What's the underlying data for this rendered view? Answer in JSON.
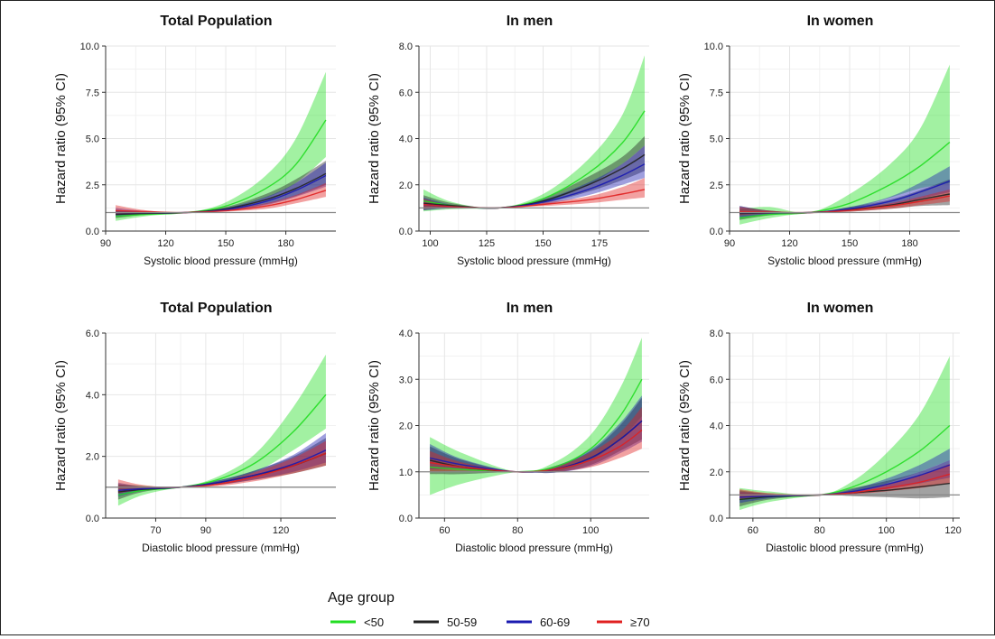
{
  "legend": {
    "title": "Age group",
    "items": [
      {
        "label": "<50",
        "color": "#22dd22"
      },
      {
        "label": "50-59",
        "color": "#222222"
      },
      {
        "label": "60-69",
        "color": "#1a1ab0"
      },
      {
        "label": "≥70",
        "color": "#e02020"
      }
    ]
  },
  "chart_data": [
    {
      "type": "line",
      "title": "Total Population",
      "xlabel": "Systolic blood pressure (mmHg)",
      "ylabel": "Hazard ratio (95% CI)",
      "xlim": [
        90,
        205
      ],
      "ylim": [
        0,
        10
      ],
      "xticks": [
        90,
        120,
        150,
        180
      ],
      "yticks": [
        "0.0",
        "2.5",
        "5.0",
        "7.5",
        "10.0"
      ],
      "reference_line": 1,
      "grid": true,
      "series": [
        {
          "name": "<50",
          "x": [
            95,
            110,
            130,
            150,
            170,
            185,
            200
          ],
          "y": [
            0.8,
            0.9,
            1.0,
            1.35,
            2.3,
            3.6,
            6.0
          ],
          "lower": [
            0.55,
            0.8,
            1.0,
            1.2,
            1.8,
            2.6,
            4.0
          ],
          "upper": [
            1.1,
            1.0,
            1.0,
            1.55,
            3.0,
            5.0,
            8.6
          ]
        },
        {
          "name": "50-59",
          "x": [
            95,
            110,
            130,
            150,
            170,
            185,
            200
          ],
          "y": [
            0.9,
            0.95,
            1.0,
            1.2,
            1.7,
            2.3,
            3.1
          ],
          "lower": [
            0.7,
            0.88,
            1.0,
            1.1,
            1.45,
            1.9,
            2.5
          ],
          "upper": [
            1.15,
            1.03,
            1.0,
            1.3,
            2.0,
            2.8,
            3.8
          ]
        },
        {
          "name": "60-69",
          "x": [
            95,
            110,
            130,
            150,
            170,
            185,
            200
          ],
          "y": [
            1.0,
            1.0,
            1.0,
            1.15,
            1.6,
            2.2,
            3.0
          ],
          "lower": [
            0.8,
            0.92,
            1.0,
            1.08,
            1.4,
            1.85,
            2.4
          ],
          "upper": [
            1.25,
            1.08,
            1.0,
            1.25,
            1.85,
            2.6,
            3.7
          ]
        },
        {
          "name": "≥70",
          "x": [
            95,
            110,
            130,
            150,
            170,
            185,
            200
          ],
          "y": [
            1.1,
            1.05,
            1.0,
            1.1,
            1.35,
            1.7,
            2.2
          ],
          "lower": [
            0.9,
            0.98,
            1.0,
            1.05,
            1.2,
            1.5,
            1.85
          ],
          "upper": [
            1.4,
            1.12,
            1.0,
            1.17,
            1.5,
            1.95,
            2.6
          ]
        }
      ]
    },
    {
      "type": "line",
      "title": "In men",
      "xlabel": "Systolic blood pressure (mmHg)",
      "ylabel": "Hazard ratio (95% CI)",
      "xlim": [
        95,
        197
      ],
      "ylim": [
        0,
        8
      ],
      "xticks": [
        100,
        125,
        150,
        175
      ],
      "yticks": [
        "0.0",
        "2.0",
        "4.0",
        "6.0",
        "8.0"
      ],
      "reference_line": 1,
      "grid": true,
      "series": [
        {
          "name": "<50",
          "x": [
            97,
            110,
            130,
            150,
            170,
            185,
            195
          ],
          "y": [
            1.3,
            1.1,
            1.0,
            1.4,
            2.5,
            3.8,
            5.2
          ],
          "lower": [
            0.85,
            0.95,
            1.0,
            1.25,
            2.0,
            2.9,
            3.7
          ],
          "upper": [
            1.8,
            1.25,
            1.0,
            1.6,
            3.1,
            5.0,
            7.6
          ]
        },
        {
          "name": "50-59",
          "x": [
            97,
            110,
            130,
            150,
            170,
            185,
            195
          ],
          "y": [
            1.2,
            1.1,
            1.0,
            1.3,
            2.0,
            2.7,
            3.3
          ],
          "lower": [
            0.9,
            1.0,
            1.0,
            1.2,
            1.7,
            2.2,
            2.6
          ],
          "upper": [
            1.55,
            1.2,
            1.0,
            1.42,
            2.35,
            3.2,
            4.1
          ]
        },
        {
          "name": "60-69",
          "x": [
            97,
            110,
            130,
            150,
            170,
            185,
            195
          ],
          "y": [
            1.15,
            1.05,
            1.0,
            1.25,
            1.8,
            2.4,
            2.9
          ],
          "lower": [
            0.9,
            0.98,
            1.0,
            1.15,
            1.55,
            2.0,
            2.3
          ],
          "upper": [
            1.45,
            1.13,
            1.0,
            1.35,
            2.1,
            2.9,
            3.7
          ]
        },
        {
          "name": "≥70",
          "x": [
            97,
            110,
            130,
            150,
            170,
            185,
            195
          ],
          "y": [
            1.15,
            1.05,
            1.0,
            1.15,
            1.35,
            1.6,
            1.8
          ],
          "lower": [
            0.95,
            1.0,
            1.0,
            1.08,
            1.2,
            1.35,
            1.45
          ],
          "upper": [
            1.4,
            1.1,
            1.0,
            1.22,
            1.5,
            1.9,
            2.3
          ]
        }
      ]
    },
    {
      "type": "line",
      "title": "In women",
      "xlabel": "Systolic blood pressure (mmHg)",
      "ylabel": "Hazard ratio (95% CI)",
      "xlim": [
        90,
        205
      ],
      "ylim": [
        0,
        10
      ],
      "xticks": [
        90,
        120,
        150,
        180
      ],
      "yticks": [
        "0.0",
        "2.5",
        "5.0",
        "7.5",
        "10.0"
      ],
      "reference_line": 1,
      "grid": true,
      "series": [
        {
          "name": "<50",
          "x": [
            95,
            110,
            130,
            150,
            170,
            185,
            200
          ],
          "y": [
            0.7,
            0.9,
            1.0,
            1.5,
            2.5,
            3.5,
            4.8
          ],
          "lower": [
            0.35,
            0.7,
            1.0,
            1.2,
            1.8,
            2.3,
            2.6
          ],
          "upper": [
            1.2,
            1.3,
            1.0,
            2.0,
            3.6,
            5.5,
            9.0
          ]
        },
        {
          "name": "50-59",
          "x": [
            95,
            110,
            130,
            150,
            170,
            185,
            200
          ],
          "y": [
            0.95,
            0.98,
            1.0,
            1.15,
            1.4,
            1.7,
            2.0
          ],
          "lower": [
            0.6,
            0.85,
            1.0,
            1.05,
            1.2,
            1.35,
            1.4
          ],
          "upper": [
            1.35,
            1.1,
            1.0,
            1.3,
            1.7,
            2.2,
            2.8
          ]
        },
        {
          "name": "60-69",
          "x": [
            95,
            110,
            130,
            150,
            170,
            185,
            200
          ],
          "y": [
            1.0,
            1.0,
            1.0,
            1.2,
            1.6,
            2.1,
            2.7
          ],
          "lower": [
            0.75,
            0.9,
            1.0,
            1.1,
            1.4,
            1.75,
            2.1
          ],
          "upper": [
            1.35,
            1.1,
            1.0,
            1.3,
            1.85,
            2.6,
            3.5
          ]
        },
        {
          "name": "≥70",
          "x": [
            95,
            110,
            130,
            150,
            170,
            185,
            200
          ],
          "y": [
            1.05,
            1.02,
            1.0,
            1.12,
            1.35,
            1.6,
            1.9
          ],
          "lower": [
            0.85,
            0.95,
            1.0,
            1.05,
            1.2,
            1.4,
            1.6
          ],
          "upper": [
            1.3,
            1.1,
            1.0,
            1.2,
            1.5,
            1.85,
            2.25
          ]
        }
      ]
    },
    {
      "type": "line",
      "title": "Total Population",
      "xlabel": "Diastolic blood pressure (mmHg)",
      "ylabel": "Hazard ratio (95% CI)",
      "xlim": [
        50,
        142
      ],
      "ylim": [
        0,
        6
      ],
      "xticks": [
        70,
        90,
        120
      ],
      "yticks": [
        "0.0",
        "2.0",
        "4.0",
        "6.0"
      ],
      "reference_line": 1,
      "grid": true,
      "series": [
        {
          "name": "<50",
          "x": [
            55,
            65,
            80,
            95,
            110,
            125,
            138
          ],
          "y": [
            0.75,
            0.9,
            1.0,
            1.25,
            1.8,
            2.8,
            4.0
          ],
          "lower": [
            0.4,
            0.75,
            1.0,
            1.15,
            1.5,
            2.2,
            2.9
          ],
          "upper": [
            1.1,
            1.05,
            1.0,
            1.35,
            2.1,
            3.6,
            5.3
          ]
        },
        {
          "name": "50-59",
          "x": [
            55,
            65,
            80,
            95,
            110,
            125,
            138
          ],
          "y": [
            0.85,
            0.93,
            1.0,
            1.15,
            1.4,
            1.7,
            2.1
          ],
          "lower": [
            0.6,
            0.85,
            1.0,
            1.08,
            1.25,
            1.45,
            1.7
          ],
          "upper": [
            1.1,
            1.02,
            1.0,
            1.22,
            1.55,
            2.0,
            2.6
          ]
        },
        {
          "name": "60-69",
          "x": [
            55,
            65,
            80,
            95,
            110,
            125,
            138
          ],
          "y": [
            0.9,
            0.95,
            1.0,
            1.15,
            1.4,
            1.75,
            2.2
          ],
          "lower": [
            0.7,
            0.88,
            1.0,
            1.08,
            1.25,
            1.5,
            1.8
          ],
          "upper": [
            1.15,
            1.03,
            1.0,
            1.22,
            1.55,
            2.05,
            2.75
          ]
        },
        {
          "name": "≥70",
          "x": [
            55,
            65,
            80,
            95,
            110,
            125,
            138
          ],
          "y": [
            1.0,
            1.0,
            1.0,
            1.1,
            1.35,
            1.7,
            2.1
          ],
          "lower": [
            0.8,
            0.93,
            1.0,
            1.04,
            1.2,
            1.45,
            1.7
          ],
          "upper": [
            1.25,
            1.07,
            1.0,
            1.16,
            1.5,
            1.95,
            2.5
          ]
        }
      ]
    },
    {
      "type": "line",
      "title": "In men",
      "xlabel": "Diastolic blood pressure (mmHg)",
      "ylabel": "Hazard ratio (95% CI)",
      "xlim": [
        53,
        116
      ],
      "ylim": [
        0,
        4
      ],
      "xticks": [
        60,
        80,
        100
      ],
      "yticks": [
        "0.0",
        "1.0",
        "2.0",
        "3.0",
        "4.0"
      ],
      "reference_line": 1,
      "grid": true,
      "series": [
        {
          "name": "<50",
          "x": [
            56,
            65,
            80,
            90,
            100,
            108,
            114
          ],
          "y": [
            1.1,
            1.05,
            1.0,
            1.1,
            1.5,
            2.2,
            3.0
          ],
          "lower": [
            0.5,
            0.75,
            1.0,
            1.0,
            1.25,
            1.7,
            2.2
          ],
          "upper": [
            1.75,
            1.4,
            1.0,
            1.2,
            1.8,
            2.8,
            3.9
          ]
        },
        {
          "name": "50-59",
          "x": [
            56,
            65,
            80,
            90,
            100,
            108,
            114
          ],
          "y": [
            1.25,
            1.1,
            1.0,
            1.05,
            1.3,
            1.7,
            2.1
          ],
          "lower": [
            0.95,
            0.95,
            1.0,
            0.98,
            1.15,
            1.45,
            1.7
          ],
          "upper": [
            1.55,
            1.25,
            1.0,
            1.12,
            1.45,
            2.0,
            2.6
          ]
        },
        {
          "name": "60-69",
          "x": [
            56,
            65,
            80,
            90,
            100,
            108,
            114
          ],
          "y": [
            1.3,
            1.15,
            1.0,
            1.05,
            1.3,
            1.7,
            2.1
          ],
          "lower": [
            1.05,
            1.05,
            1.0,
            0.98,
            1.12,
            1.4,
            1.65
          ],
          "upper": [
            1.6,
            1.27,
            1.0,
            1.12,
            1.48,
            2.05,
            2.65
          ]
        },
        {
          "name": "≥70",
          "x": [
            56,
            65,
            80,
            90,
            100,
            108,
            114
          ],
          "y": [
            1.2,
            1.1,
            1.0,
            1.05,
            1.25,
            1.55,
            1.9
          ],
          "lower": [
            1.0,
            1.02,
            1.0,
            1.0,
            1.1,
            1.3,
            1.5
          ],
          "upper": [
            1.45,
            1.2,
            1.0,
            1.1,
            1.42,
            1.85,
            2.4
          ]
        }
      ]
    },
    {
      "type": "line",
      "title": "In women",
      "xlabel": "Diastolic blood pressure (mmHg)",
      "ylabel": "Hazard ratio (95% CI)",
      "xlim": [
        53,
        122
      ],
      "ylim": [
        0,
        8
      ],
      "xticks": [
        60,
        80,
        100,
        120
      ],
      "yticks": [
        "0.0",
        "2.0",
        "4.0",
        "6.0",
        "8.0"
      ],
      "reference_line": 1,
      "grid": true,
      "series": [
        {
          "name": "<50",
          "x": [
            56,
            65,
            80,
            90,
            100,
            110,
            119
          ],
          "y": [
            0.8,
            0.92,
            1.0,
            1.35,
            2.0,
            2.9,
            4.0
          ],
          "lower": [
            0.35,
            0.7,
            1.0,
            1.15,
            1.5,
            2.0,
            2.5
          ],
          "upper": [
            1.3,
            1.15,
            1.0,
            1.6,
            2.8,
            4.5,
            7.0
          ]
        },
        {
          "name": "50-59",
          "x": [
            56,
            65,
            80,
            90,
            100,
            110,
            119
          ],
          "y": [
            0.8,
            0.92,
            1.0,
            1.1,
            1.2,
            1.35,
            1.5
          ],
          "lower": [
            0.5,
            0.8,
            1.0,
            0.95,
            0.9,
            0.85,
            0.9
          ],
          "upper": [
            1.2,
            1.05,
            1.0,
            1.3,
            1.6,
            2.0,
            2.5
          ]
        },
        {
          "name": "60-69",
          "x": [
            56,
            65,
            80,
            90,
            100,
            110,
            119
          ],
          "y": [
            0.9,
            0.95,
            1.0,
            1.15,
            1.45,
            1.85,
            2.3
          ],
          "lower": [
            0.65,
            0.85,
            1.0,
            1.05,
            1.25,
            1.5,
            1.75
          ],
          "upper": [
            1.15,
            1.05,
            1.0,
            1.25,
            1.7,
            2.3,
            3.0
          ]
        },
        {
          "name": "≥70",
          "x": [
            56,
            65,
            80,
            90,
            100,
            110,
            119
          ],
          "y": [
            1.0,
            1.0,
            1.0,
            1.1,
            1.3,
            1.55,
            1.9
          ],
          "lower": [
            0.8,
            0.92,
            1.0,
            1.03,
            1.15,
            1.3,
            1.5
          ],
          "upper": [
            1.25,
            1.08,
            1.0,
            1.17,
            1.45,
            1.85,
            2.35
          ]
        }
      ]
    }
  ]
}
